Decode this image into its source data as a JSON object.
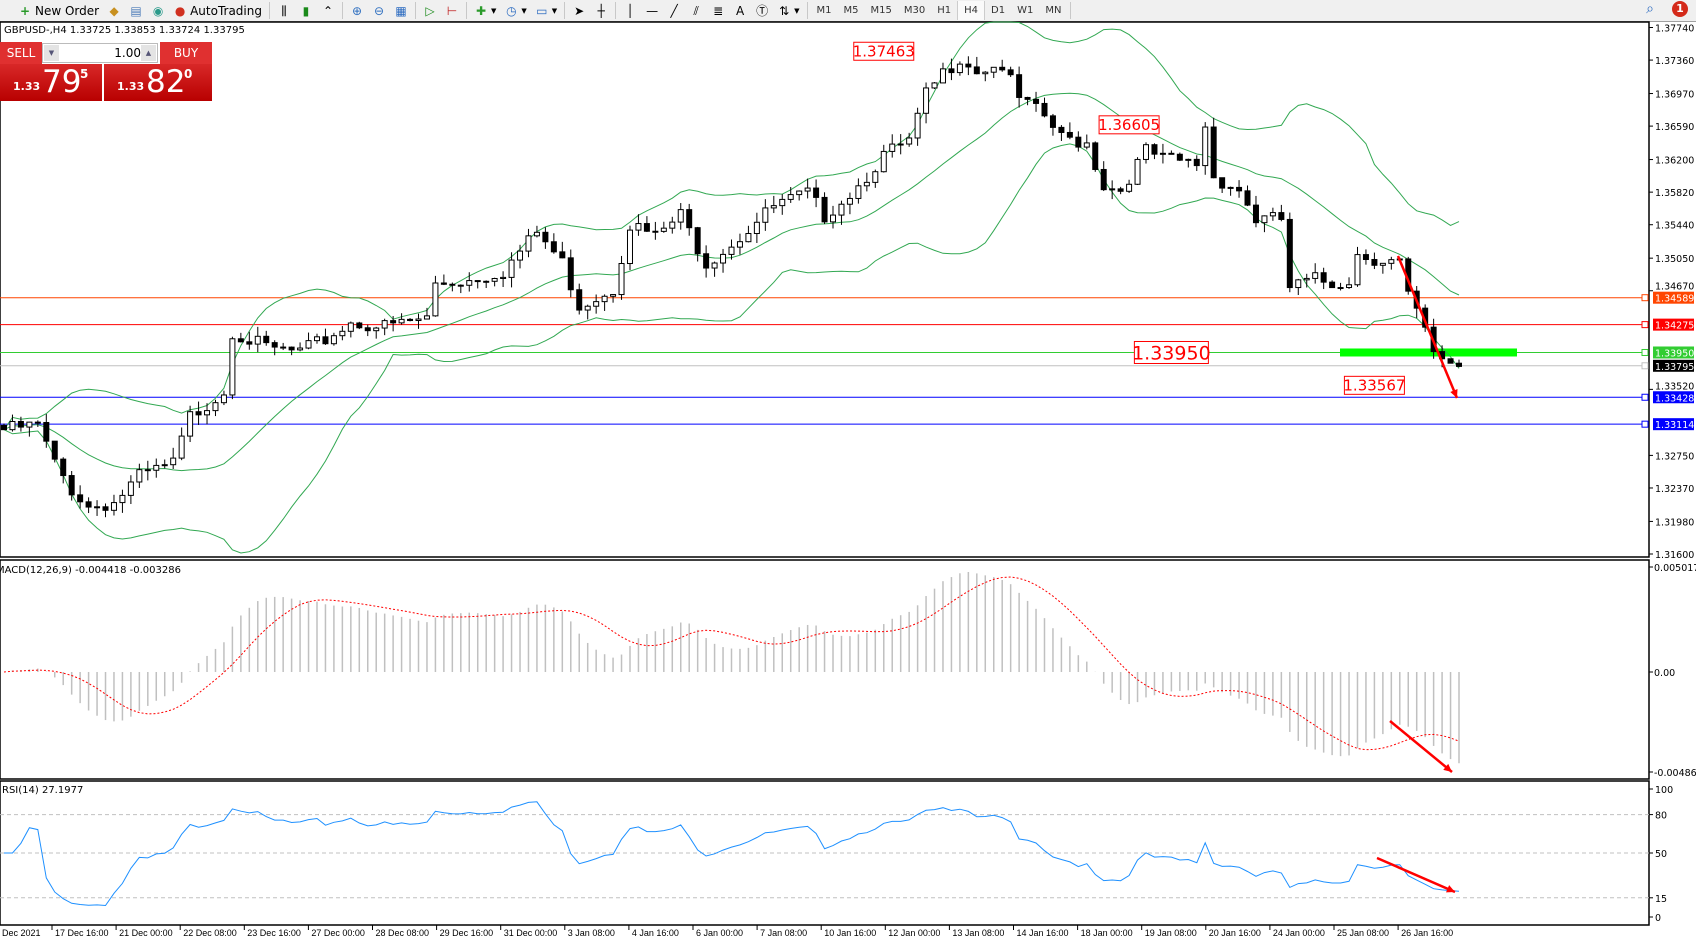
{
  "toolbar": {
    "new_order_label": "New Order",
    "autotrading_label": "AutoTrading",
    "timeframes": [
      "M1",
      "M5",
      "M15",
      "M30",
      "H1",
      "H4",
      "D1",
      "W1",
      "MN"
    ],
    "active_timeframe": "H4",
    "notification_count": "1"
  },
  "chart": {
    "symbol_info": "GBPUSD-,H4  1.33725 1.33853 1.33724 1.33795",
    "price_axis_labels": [
      "1.37740",
      "1.37360",
      "1.36970",
      "1.36590",
      "1.36200",
      "1.35820",
      "1.35440",
      "1.35050",
      "1.34670",
      "1.33520",
      "1.32750",
      "1.32370",
      "1.31980",
      "1.31600"
    ],
    "price_range": [
      1.316,
      1.3774
    ],
    "horizontal_lines": [
      {
        "price": 1.34589,
        "label": "1.34589",
        "color": "#ff4500"
      },
      {
        "price": 1.34275,
        "label": "1.34275",
        "color": "#ff0000"
      },
      {
        "price": 1.3395,
        "label": "1.33950",
        "color": "#32cd32"
      },
      {
        "price": 1.33795,
        "label": "1.33795",
        "color": "#c0c0c0",
        "label_bg": "#000000"
      },
      {
        "price": 1.33428,
        "label": "1.33428",
        "color": "#0000ff"
      },
      {
        "price": 1.33114,
        "label": "1.33114",
        "color": "#0000ff"
      }
    ],
    "annotations": [
      {
        "text": "1.37463",
        "price": 1.37463,
        "bar": 104
      },
      {
        "text": "1.36605",
        "price": 1.36605,
        "bar": 133
      },
      {
        "text": "1.33950",
        "price": 1.3395,
        "bar": 138,
        "large": true
      },
      {
        "text": "1.33567",
        "price": 1.33567,
        "bar": 162
      }
    ],
    "price_path": [
      [
        0,
        1.3305
      ],
      [
        4,
        1.331
      ],
      [
        6,
        1.3265
      ],
      [
        8,
        1.3235
      ],
      [
        10,
        1.3215
      ],
      [
        13,
        1.322
      ],
      [
        16,
        1.325
      ],
      [
        20,
        1.3265
      ],
      [
        22,
        1.332
      ],
      [
        26,
        1.335
      ],
      [
        27,
        1.342
      ],
      [
        31,
        1.34
      ],
      [
        35,
        1.3395
      ],
      [
        38,
        1.341
      ],
      [
        41,
        1.343
      ],
      [
        45,
        1.3425
      ],
      [
        50,
        1.3435
      ],
      [
        51,
        1.3475
      ],
      [
        55,
        1.348
      ],
      [
        59,
        1.349
      ],
      [
        63,
        1.3535
      ],
      [
        66,
        1.35
      ],
      [
        68,
        1.345
      ],
      [
        72,
        1.347
      ],
      [
        74,
        1.3545
      ],
      [
        77,
        1.353
      ],
      [
        80,
        1.3555
      ],
      [
        83,
        1.35
      ],
      [
        87,
        1.353
      ],
      [
        91,
        1.3565
      ],
      [
        95,
        1.358
      ],
      [
        97,
        1.3555
      ],
      [
        101,
        1.359
      ],
      [
        104,
        1.3625
      ],
      [
        107,
        1.364
      ],
      [
        109,
        1.3695
      ],
      [
        111,
        1.372
      ],
      [
        113,
        1.374
      ],
      [
        115,
        1.3725
      ],
      [
        118,
        1.373
      ],
      [
        120,
        1.369
      ],
      [
        123,
        1.367
      ],
      [
        125,
        1.3645
      ],
      [
        128,
        1.364
      ],
      [
        130,
        1.359
      ],
      [
        132,
        1.3585
      ],
      [
        135,
        1.363
      ],
      [
        137,
        1.362
      ],
      [
        141,
        1.3615
      ],
      [
        142,
        1.366
      ],
      [
        143,
        1.36
      ],
      [
        146,
        1.3585
      ],
      [
        148,
        1.355
      ],
      [
        151,
        1.355
      ],
      [
        152,
        1.347
      ],
      [
        155,
        1.348
      ],
      [
        157,
        1.3475
      ],
      [
        159,
        1.348
      ],
      [
        160,
        1.351
      ],
      [
        162,
        1.3505
      ],
      [
        165,
        1.35
      ],
      [
        166,
        1.346
      ],
      [
        168,
        1.342
      ],
      [
        169,
        1.339
      ],
      [
        171,
        1.3385
      ],
      [
        172,
        1.338
      ]
    ],
    "time_labels": [
      "Dec 2021",
      "17 Dec 16:00",
      "21 Dec 00:00",
      "22 Dec 08:00",
      "23 Dec 16:00",
      "27 Dec 00:00",
      "28 Dec 08:00",
      "29 Dec 16:00",
      "31 Dec 00:00",
      "3 Jan 08:00",
      "4 Jan 16:00",
      "6 Jan 00:00",
      "7 Jan 08:00",
      "10 Jan 16:00",
      "12 Jan 00:00",
      "13 Jan 08:00",
      "14 Jan 16:00",
      "18 Jan 00:00",
      "19 Jan 08:00",
      "20 Jan 16:00",
      "24 Jan 00:00",
      "25 Jan 08:00",
      "26 Jan 16:00"
    ],
    "bands_color": "#32a852",
    "up_candle": "#ffffff",
    "down_candle": "#000000"
  },
  "one_click": {
    "sell_label": "SELL",
    "buy_label": "BUY",
    "lots": "1.00",
    "sell_price": {
      "prefix": "1.33",
      "big": "79",
      "sup": "5"
    },
    "buy_price": {
      "prefix": "1.33",
      "big": "82",
      "sup": "0"
    }
  },
  "macd": {
    "label": "MACD(12,26,9) -0.004418 -0.003286",
    "axis_labels": [
      "0.005017",
      "0.00",
      "-0.004867"
    ],
    "range": [
      -0.004867,
      0.005017
    ],
    "histogram_color": "#c0c0c0",
    "signal_color": "#ff0000"
  },
  "rsi": {
    "label": "RSI(14) 27.1977",
    "label_visible": "SI(14) 27.1977",
    "axis_labels": [
      "100",
      "80",
      "50",
      "15",
      "0"
    ],
    "levels": [
      80,
      50,
      15
    ],
    "line_color": "#1e90ff"
  },
  "arrows_color": "#ff0000"
}
